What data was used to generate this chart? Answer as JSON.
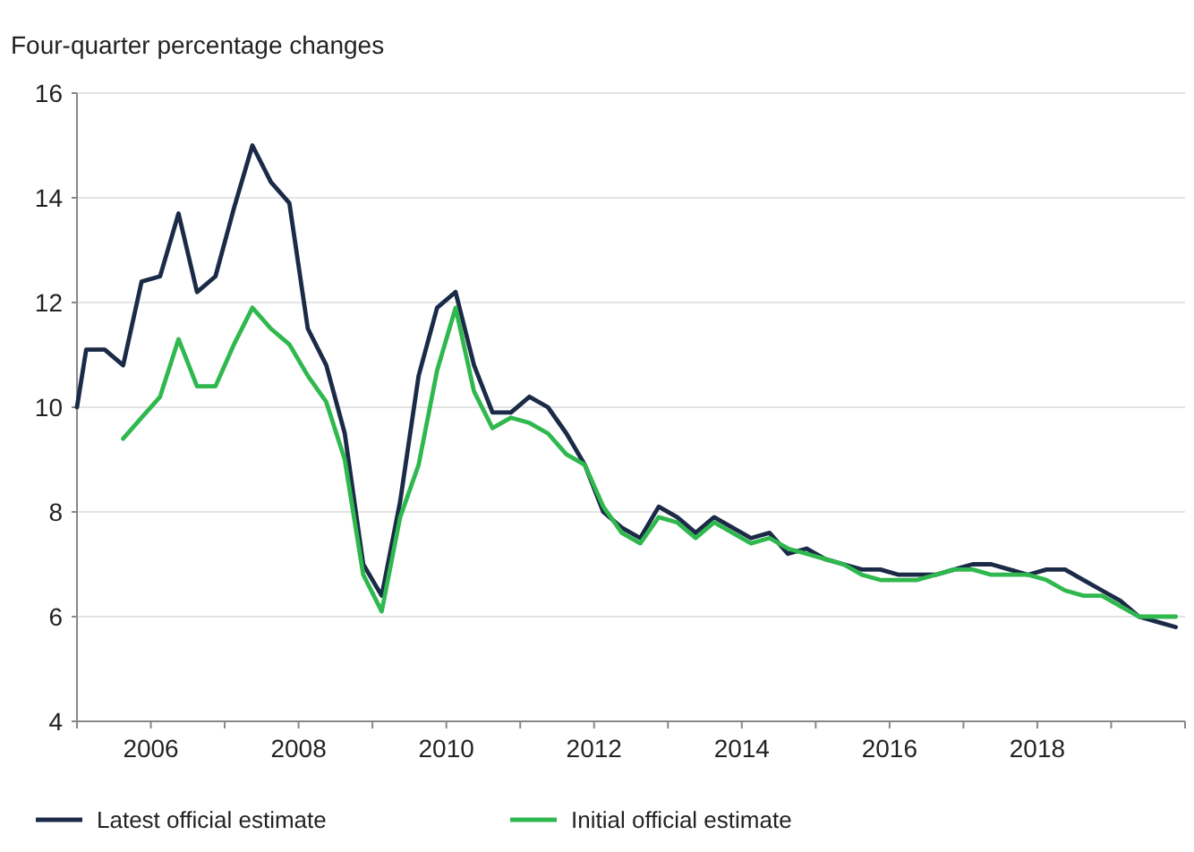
{
  "chart_data": {
    "type": "line",
    "subtitle": "Four-quarter percentage changes",
    "x": [
      2005.0,
      2005.125,
      2005.375,
      2005.625,
      2005.875,
      2006.125,
      2006.375,
      2006.625,
      2006.875,
      2007.125,
      2007.375,
      2007.625,
      2007.875,
      2008.125,
      2008.375,
      2008.625,
      2008.875,
      2009.125,
      2009.375,
      2009.625,
      2009.875,
      2010.125,
      2010.375,
      2010.625,
      2010.875,
      2011.125,
      2011.375,
      2011.625,
      2011.875,
      2012.125,
      2012.375,
      2012.625,
      2012.875,
      2013.125,
      2013.375,
      2013.625,
      2013.875,
      2014.125,
      2014.375,
      2014.625,
      2014.875,
      2015.125,
      2015.375,
      2015.625,
      2015.875,
      2016.125,
      2016.375,
      2016.625,
      2016.875,
      2017.125,
      2017.375,
      2017.625,
      2017.875,
      2018.125,
      2018.375,
      2018.625,
      2018.875,
      2019.125,
      2019.375,
      2019.625,
      2019.875
    ],
    "series": [
      {
        "name": "Latest official estimate",
        "color": "#1b2a47",
        "values": [
          10.0,
          11.1,
          11.1,
          10.8,
          12.4,
          12.5,
          13.7,
          12.2,
          12.5,
          13.8,
          15.0,
          14.3,
          13.9,
          11.5,
          10.8,
          9.5,
          7.0,
          6.4,
          8.2,
          10.6,
          11.9,
          12.2,
          10.8,
          9.9,
          9.9,
          10.2,
          10.0,
          9.5,
          8.9,
          8.0,
          7.7,
          7.5,
          8.1,
          7.9,
          7.6,
          7.9,
          7.7,
          7.5,
          7.6,
          7.2,
          7.3,
          7.1,
          7.0,
          6.9,
          6.9,
          6.8,
          6.8,
          6.8,
          6.9,
          7.0,
          7.0,
          6.9,
          6.8,
          6.9,
          6.9,
          6.7,
          6.5,
          6.3,
          6.0,
          5.9,
          5.8
        ]
      },
      {
        "name": "Initial official estimate",
        "color": "#2fb84e",
        "values": [
          null,
          null,
          null,
          9.4,
          9.8,
          10.2,
          11.3,
          10.4,
          10.4,
          11.2,
          11.9,
          11.5,
          11.2,
          10.6,
          10.1,
          9.0,
          6.8,
          6.1,
          7.9,
          8.9,
          10.7,
          11.9,
          10.3,
          9.6,
          9.8,
          9.7,
          9.5,
          9.1,
          8.9,
          8.1,
          7.6,
          7.4,
          7.9,
          7.8,
          7.5,
          7.8,
          7.6,
          7.4,
          7.5,
          7.3,
          7.2,
          7.1,
          7.0,
          6.8,
          6.7,
          6.7,
          6.7,
          6.8,
          6.9,
          6.9,
          6.8,
          6.8,
          6.8,
          6.7,
          6.5,
          6.4,
          6.4,
          6.2,
          6.0,
          6.0,
          6.0
        ]
      }
    ],
    "xlim": [
      2005,
      2020
    ],
    "xticks": [
      {
        "value": 2005,
        "label": null
      },
      {
        "value": 2006,
        "label": "2006"
      },
      {
        "value": 2007,
        "label": null
      },
      {
        "value": 2008,
        "label": "2008"
      },
      {
        "value": 2009,
        "label": null
      },
      {
        "value": 2010,
        "label": "2010"
      },
      {
        "value": 2011,
        "label": null
      },
      {
        "value": 2012,
        "label": "2012"
      },
      {
        "value": 2013,
        "label": null
      },
      {
        "value": 2014,
        "label": "2014"
      },
      {
        "value": 2015,
        "label": null
      },
      {
        "value": 2016,
        "label": "2016"
      },
      {
        "value": 2017,
        "label": null
      },
      {
        "value": 2018,
        "label": "2018"
      },
      {
        "value": 2019,
        "label": null
      },
      {
        "value": 2020,
        "label": null
      }
    ],
    "ylim": [
      4,
      16
    ],
    "yticks": [
      4,
      6,
      8,
      10,
      12,
      14,
      16
    ],
    "grid": "y",
    "legend": "bottom",
    "marker": "none",
    "line_style": "solid"
  }
}
